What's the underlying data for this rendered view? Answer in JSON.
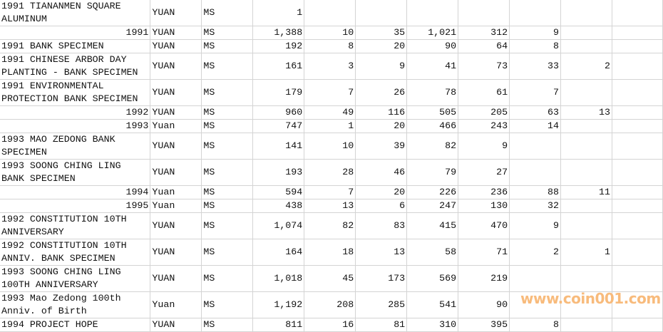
{
  "sheet": {
    "rows": [
      {
        "name": "1991 TIANANMEN SQUARE ALUMINUM",
        "unit": "YUAN",
        "grade": "MS",
        "total": "1",
        "counts": [
          "",
          "",
          "",
          "",
          "",
          ""
        ]
      },
      {
        "name": "1991",
        "name_numeric": true,
        "unit": "YUAN",
        "grade": "MS",
        "total": "1,388",
        "counts": [
          "10",
          "35",
          "1,021",
          "312",
          "9",
          ""
        ]
      },
      {
        "name": "1991 BANK SPECIMEN",
        "unit": "YUAN",
        "grade": "MS",
        "total": "192",
        "counts": [
          "8",
          "20",
          "90",
          "64",
          "8",
          ""
        ]
      },
      {
        "name": "1991 CHINESE ARBOR DAY PLANTING - BANK SPECIMEN",
        "unit": "YUAN",
        "grade": "MS",
        "total": "161",
        "counts": [
          "3",
          "9",
          "41",
          "73",
          "33",
          "2"
        ]
      },
      {
        "name": "1991 ENVIRONMENTAL PROTECTION BANK SPECIMEN",
        "unit": "YUAN",
        "grade": "MS",
        "total": "179",
        "counts": [
          "7",
          "26",
          "78",
          "61",
          "7",
          ""
        ]
      },
      {
        "name": "1992",
        "name_numeric": true,
        "unit": "YUAN",
        "grade": "MS",
        "total": "960",
        "counts": [
          "49",
          "116",
          "505",
          "205",
          "63",
          "13"
        ]
      },
      {
        "name": "1993",
        "name_numeric": true,
        "unit": "Yuan",
        "grade": "MS",
        "total": "747",
        "counts": [
          "1",
          "20",
          "466",
          "243",
          "14",
          ""
        ]
      },
      {
        "name": "1993 MAO ZEDONG BANK SPECIMEN",
        "unit": "YUAN",
        "grade": "MS",
        "total": "141",
        "counts": [
          "10",
          "39",
          "82",
          "9",
          "",
          ""
        ]
      },
      {
        "name": "1993 SOONG CHING LING BANK SPECIMEN",
        "unit": "YUAN",
        "grade": "MS",
        "total": "193",
        "counts": [
          "28",
          "46",
          "79",
          "27",
          "",
          ""
        ]
      },
      {
        "name": "1994",
        "name_numeric": true,
        "unit": "Yuan",
        "grade": "MS",
        "total": "594",
        "counts": [
          "7",
          "20",
          "226",
          "236",
          "88",
          "11"
        ]
      },
      {
        "name": "1995",
        "name_numeric": true,
        "unit": "Yuan",
        "grade": "MS",
        "total": "438",
        "counts": [
          "13",
          "6",
          "247",
          "130",
          "32",
          ""
        ]
      },
      {
        "name": "1992 CONSTITUTION 10TH ANNIVERSARY",
        "unit": "YUAN",
        "grade": "MS",
        "total": "1,074",
        "counts": [
          "82",
          "83",
          "415",
          "470",
          "9",
          ""
        ]
      },
      {
        "name": "1992 CONSTITUTION 10TH ANNIV. BANK SPECIMEN",
        "unit": "YUAN",
        "grade": "MS",
        "total": "164",
        "counts": [
          "18",
          "13",
          "58",
          "71",
          "2",
          "1"
        ]
      },
      {
        "name": "1993 SOONG CHING LING 100TH ANNIVERSARY",
        "unit": "YUAN",
        "grade": "MS",
        "total": "1,018",
        "counts": [
          "45",
          "173",
          "569",
          "219",
          "",
          ""
        ]
      },
      {
        "name": "1993 Mao Zedong 100th Anniv. of Birth",
        "unit": "Yuan",
        "grade": "MS",
        "total": "1,192",
        "counts": [
          "208",
          "285",
          "541",
          "90",
          "",
          ""
        ]
      },
      {
        "name": "1994 PROJECT HOPE",
        "unit": "YUAN",
        "grade": "MS",
        "total": "811",
        "counts": [
          "16",
          "81",
          "310",
          "395",
          "8",
          ""
        ]
      }
    ],
    "tall_rows": [
      0,
      3,
      4,
      7,
      8,
      11,
      12,
      13,
      14
    ]
  },
  "watermark": {
    "text": "www.coin001.com",
    "color": "#f8bb7c"
  }
}
